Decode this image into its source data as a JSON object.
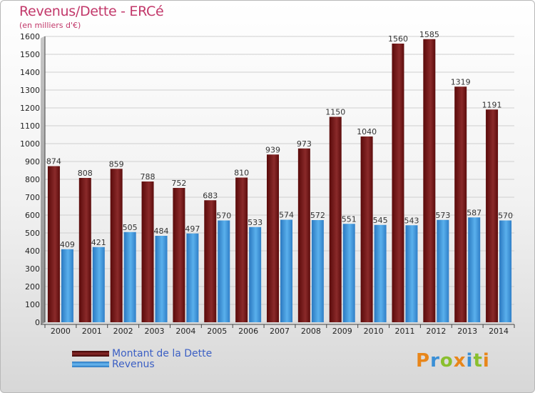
{
  "title": "Revenus/Dette - ERCé",
  "subtitle": "(en milliers d'€)",
  "legend": {
    "debt_label": "Montant de la Dette",
    "revenue_label": "Revenus"
  },
  "logo_text": "Proxiti",
  "colors": {
    "debt": "#6e1010",
    "revenue": "#3a8fd6",
    "title": "#c2386a",
    "legend_text": "#3b5fc4"
  },
  "chart_data": {
    "type": "bar",
    "categories": [
      "2000",
      "2001",
      "2002",
      "2003",
      "2004",
      "2005",
      "2006",
      "2007",
      "2008",
      "2009",
      "2010",
      "2011",
      "2012",
      "2013",
      "2014"
    ],
    "series": [
      {
        "name": "Montant de la Dette",
        "values": [
          874,
          808,
          859,
          788,
          752,
          683,
          810,
          939,
          973,
          1150,
          1040,
          1560,
          1585,
          1319,
          1191
        ]
      },
      {
        "name": "Revenus",
        "values": [
          409,
          421,
          505,
          484,
          497,
          570,
          533,
          574,
          572,
          551,
          545,
          543,
          573,
          587,
          570
        ]
      }
    ],
    "ylim": [
      0,
      1600
    ],
    "yticks": [
      0,
      100,
      200,
      300,
      400,
      500,
      600,
      700,
      800,
      900,
      1000,
      1100,
      1200,
      1300,
      1400,
      1500,
      1600
    ],
    "grid": true
  }
}
